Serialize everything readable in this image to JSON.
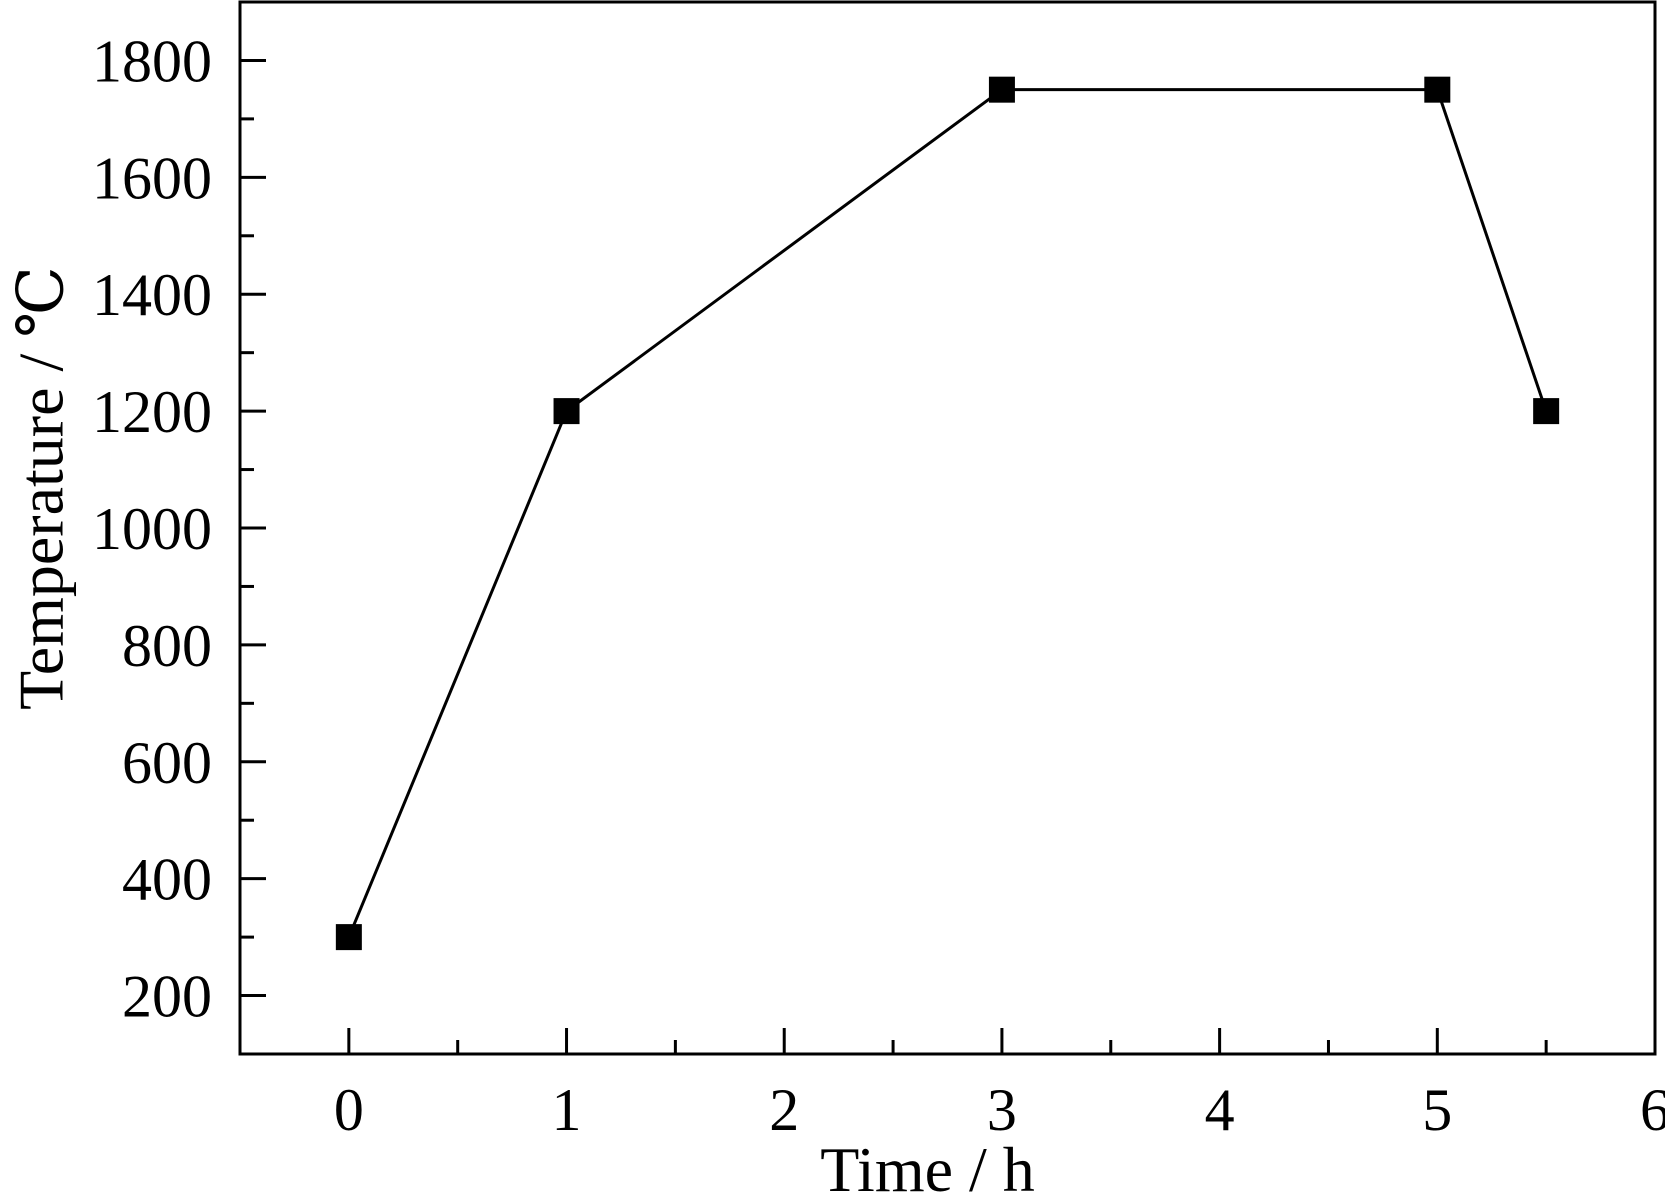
{
  "chart_data": {
    "type": "line",
    "title": "",
    "xlabel": "Time / h",
    "ylabel": "Temperature / ℃",
    "xlim": [
      -0.5,
      6
    ],
    "ylim": [
      100,
      1900
    ],
    "x_ticks": [
      0,
      1,
      2,
      3,
      4,
      5,
      6
    ],
    "x_minor_ticks": [
      0.5,
      1.5,
      2.5,
      3.5,
      4.5,
      5.5
    ],
    "y_ticks": [
      200,
      400,
      600,
      800,
      1000,
      1200,
      1400,
      1600,
      1800
    ],
    "y_minor_ticks": [
      300,
      500,
      700,
      900,
      1100,
      1300,
      1500,
      1700
    ],
    "x_tick_labels": [
      "0",
      "1",
      "2",
      "3",
      "4",
      "5",
      "6"
    ],
    "y_tick_labels": [
      "200",
      "400",
      "600",
      "800",
      "1000",
      "1200",
      "1400",
      "1600",
      "1800"
    ],
    "grid": false,
    "legend": "none",
    "series": [
      {
        "marker": "square",
        "color": "#000000",
        "x": [
          0,
          1,
          3,
          5,
          5.5
        ],
        "y": [
          300,
          1200,
          1750,
          1750,
          1200
        ]
      }
    ]
  }
}
